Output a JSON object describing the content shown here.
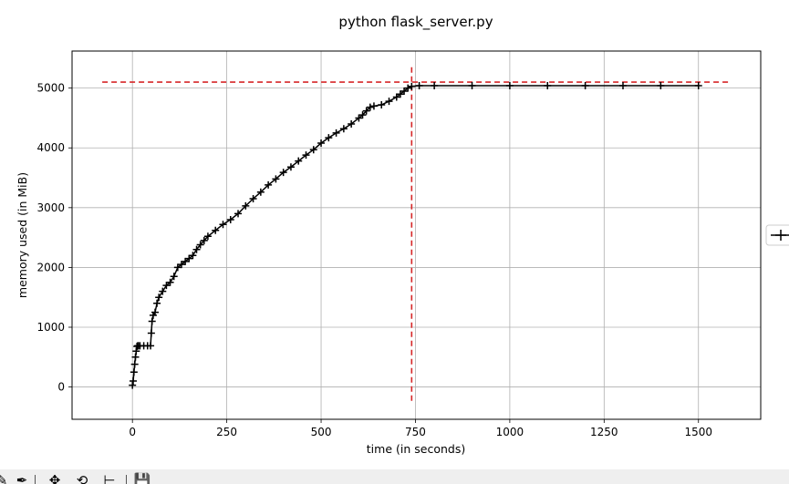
{
  "chart_data": {
    "type": "line",
    "title": "python flask_server.py",
    "xlabel": "time (in seconds)",
    "ylabel": "memory used (in MiB)",
    "xlim": [
      -160,
      1665
    ],
    "ylim": [
      -540,
      5620
    ],
    "xticks": [
      0,
      250,
      500,
      750,
      1000,
      1250,
      1500
    ],
    "yticks": [
      0,
      1000,
      2000,
      3000,
      4000,
      5000
    ],
    "xtick_labels": [
      "0",
      "250",
      "500",
      "750",
      "1000",
      "1250",
      "1500"
    ],
    "ytick_labels": [
      "0",
      "1000",
      "2000",
      "3000",
      "4000",
      "5000"
    ],
    "grid": true,
    "marker": "+",
    "series_color": "#000000",
    "series": [
      {
        "x": [
          0,
          2,
          4,
          6,
          8,
          10,
          12,
          14,
          16,
          20,
          30,
          40,
          48,
          50,
          52,
          55,
          60,
          65,
          70,
          80,
          90,
          100,
          110,
          120,
          130,
          140,
          150,
          160,
          170,
          180,
          190,
          200,
          220,
          240,
          260,
          280,
          300,
          320,
          340,
          360,
          380,
          400,
          420,
          440,
          460,
          480,
          500,
          520,
          540,
          560,
          580,
          600,
          610,
          620,
          630,
          640,
          660,
          680,
          700,
          710,
          720,
          730,
          740,
          760,
          800,
          900,
          1000,
          1100,
          1200,
          1300,
          1400,
          1500
        ],
        "y": [
          30,
          100,
          250,
          380,
          500,
          600,
          680,
          690,
          690,
          690,
          690,
          690,
          690,
          900,
          1100,
          1200,
          1250,
          1400,
          1500,
          1600,
          1700,
          1750,
          1850,
          2000,
          2050,
          2100,
          2150,
          2200,
          2300,
          2380,
          2450,
          2520,
          2620,
          2720,
          2800,
          2900,
          3030,
          3150,
          3260,
          3380,
          3480,
          3590,
          3680,
          3780,
          3880,
          3970,
          4080,
          4170,
          4250,
          4320,
          4400,
          4500,
          4550,
          4620,
          4680,
          4700,
          4720,
          4780,
          4850,
          4900,
          4950,
          5000,
          5030,
          5040,
          5040,
          5040,
          5040,
          5040,
          5040,
          5040,
          5040,
          5040
        ]
      }
    ],
    "reference_lines": {
      "color": "#d62728",
      "hline_y": 5100,
      "hline_x_range": [
        -80,
        1580
      ],
      "vline_x": 740,
      "vline_y_range": [
        -250,
        5350
      ]
    }
  },
  "toolbar": {
    "buttons": [
      "✎",
      "✥",
      "⟲",
      "⊢",
      "💾"
    ]
  }
}
